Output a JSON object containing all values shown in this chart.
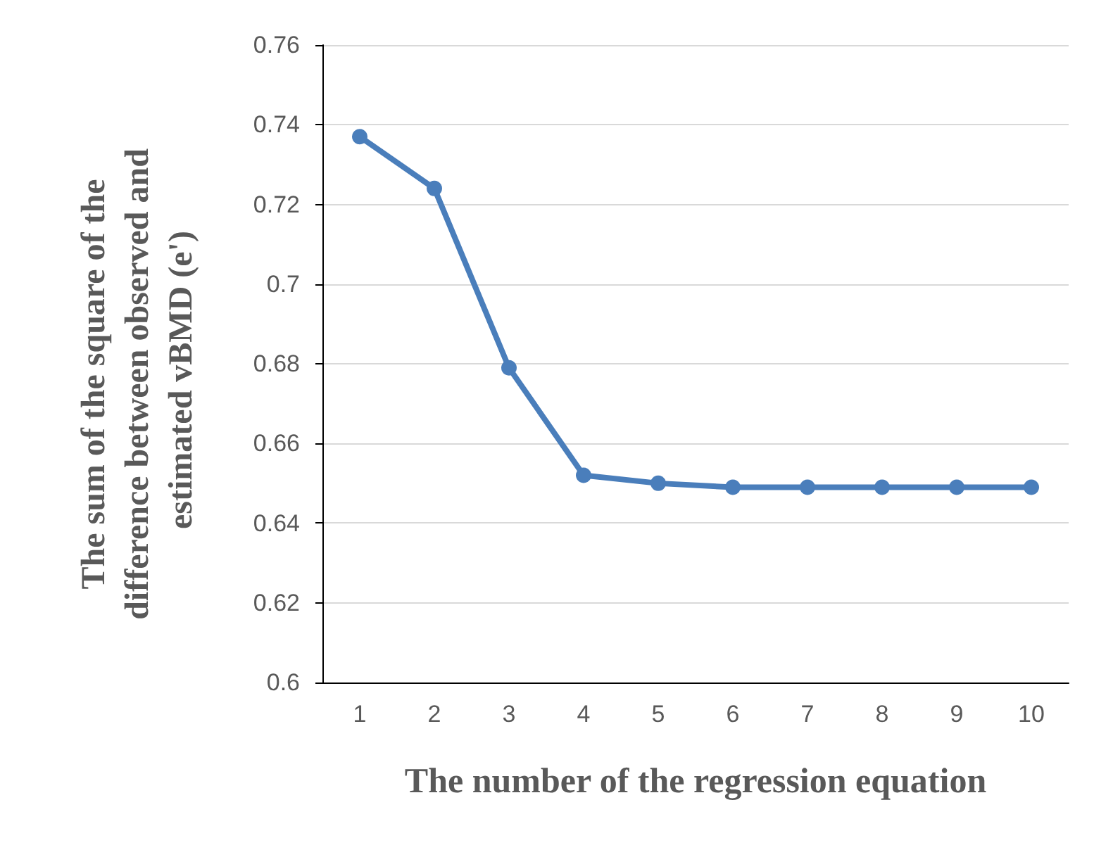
{
  "chart_data": {
    "type": "line",
    "xlabel": "The number of the regression equation",
    "ylabel": "The sum of the square of the difference between observed and estimated vBMD (e')",
    "categories": [
      "1",
      "2",
      "3",
      "4",
      "5",
      "6",
      "7",
      "8",
      "9",
      "10"
    ],
    "series": [
      {
        "color": "#4a7ebb",
        "values": [
          0.737,
          0.724,
          0.679,
          0.652,
          0.65,
          0.649,
          0.649,
          0.649,
          0.649,
          0.649
        ]
      }
    ],
    "ylim": [
      0.6,
      0.76
    ],
    "yticks": [
      0.6,
      0.62,
      0.64,
      0.66,
      0.68,
      0.7,
      0.72,
      0.74,
      0.76
    ],
    "grid": "y",
    "marker": "circle",
    "line_style": "solid"
  }
}
